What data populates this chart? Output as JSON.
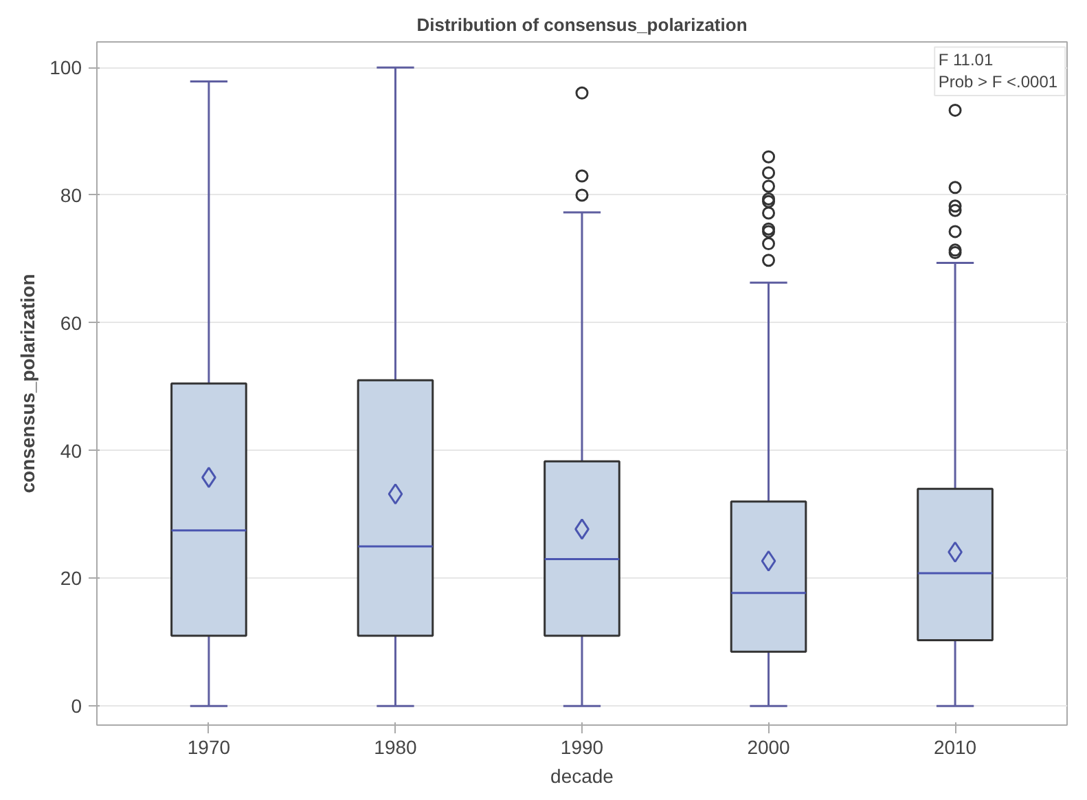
{
  "chart_data": {
    "type": "box",
    "title": "Distribution of consensus_polarization",
    "xlabel": "decade",
    "ylabel": "consensus_polarization",
    "categories": [
      "1970",
      "1980",
      "1990",
      "2000",
      "2010"
    ],
    "color": "#c6d4e6",
    "boxes": [
      {
        "low": 0,
        "q1": 11,
        "median": 27.5,
        "q3": 50.5,
        "high": 97.8,
        "mean": 35.8
      },
      {
        "low": 0,
        "q1": 11,
        "median": 25,
        "q3": 51,
        "high": 100,
        "mean": 33.2
      },
      {
        "low": 0,
        "q1": 11,
        "median": 23,
        "q3": 38.3,
        "high": 77.3,
        "mean": 27.7,
        "outliers": [
          80.0,
          83.0,
          96.0
        ]
      },
      {
        "low": 0,
        "q1": 8.5,
        "median": 17.7,
        "q3": 32,
        "high": 66.3,
        "mean": 22.7,
        "outliers": [
          69.8,
          72.4,
          74.3,
          74.7,
          77.2,
          79.0,
          79.4,
          81.4,
          83.5,
          86.0
        ]
      },
      {
        "low": 0,
        "q1": 10.3,
        "median": 20.8,
        "q3": 34,
        "high": 69.4,
        "mean": 24.1,
        "outliers": [
          71.0,
          71.4,
          74.3,
          77.6,
          78.3,
          81.2,
          93.3
        ]
      }
    ],
    "ylim": [
      -3,
      104
    ],
    "yticks": [
      0,
      20,
      40,
      60,
      80,
      100
    ],
    "grid": "y",
    "annotations": [
      "F 11.01",
      "Prob > F <.0001"
    ]
  }
}
